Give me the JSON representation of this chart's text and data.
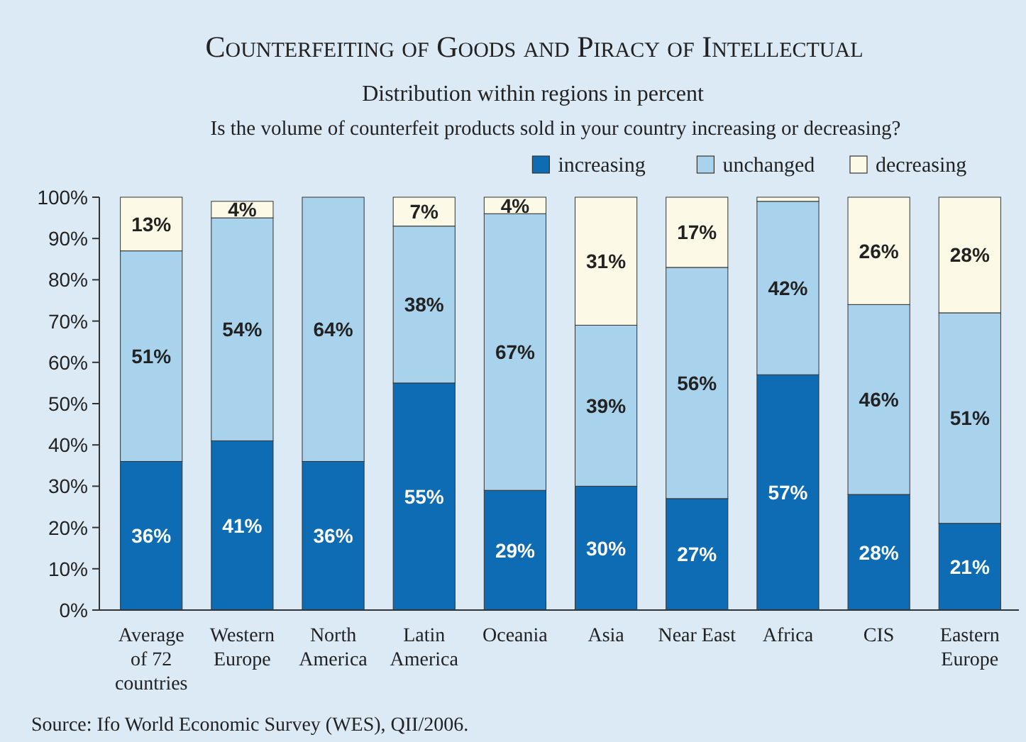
{
  "chart_data": {
    "type": "bar",
    "stacked": true,
    "title": "Counterfeiting of Goods and Piracy of Intellectual",
    "subtitle": "Distribution within regions in percent",
    "ylabel": "Is the volume of counterfeit products sold in your country increasing or decreasing?",
    "categories": [
      "Average of 72 countries",
      "Western Europe",
      "North America",
      "Latin America",
      "Oceania",
      "Asia",
      "Near East",
      "Africa",
      "CIS",
      "Eastern Europe"
    ],
    "series": [
      {
        "name": "increasing",
        "color": "#0d6cb4",
        "values": [
          36,
          41,
          36,
          55,
          29,
          30,
          27,
          57,
          28,
          21
        ],
        "value_labels": [
          "36%",
          "41%",
          "36%",
          "55%",
          "29%",
          "30%",
          "27%",
          "57%",
          "28%",
          "21%"
        ]
      },
      {
        "name": "unchanged",
        "color": "#a9d3ec",
        "values": [
          51,
          54,
          64,
          38,
          67,
          39,
          56,
          42,
          46,
          51
        ],
        "value_labels": [
          "51%",
          "54%",
          "64%",
          "38%",
          "67%",
          "39%",
          "56%",
          "42%",
          "46%",
          "51%"
        ]
      },
      {
        "name": "decreasing",
        "color": "#fcfae6",
        "values": [
          13,
          4,
          0,
          7,
          4,
          31,
          17,
          1,
          26,
          28
        ],
        "value_labels": [
          "13%",
          "4%",
          null,
          "7%",
          "4%",
          "31%",
          "17%",
          null,
          "26%",
          "28%"
        ]
      }
    ],
    "ylim": [
      0,
      100
    ],
    "yticks": [
      {
        "value": 0,
        "label": "0%"
      },
      {
        "value": 10,
        "label": "10%"
      },
      {
        "value": 20,
        "label": "20%"
      },
      {
        "value": 30,
        "label": "30%"
      },
      {
        "value": 40,
        "label": "40%"
      },
      {
        "value": 50,
        "label": "50%"
      },
      {
        "value": 60,
        "label": "60%"
      },
      {
        "value": 70,
        "label": "70%"
      },
      {
        "value": 80,
        "label": "80%"
      },
      {
        "value": 90,
        "label": "90%"
      },
      {
        "value": 100,
        "label": "100%"
      }
    ],
    "grid": false,
    "legend": "top right",
    "annotations": [
      "Source: Ifo World Economic Survey (WES), QII/2006."
    ]
  }
}
